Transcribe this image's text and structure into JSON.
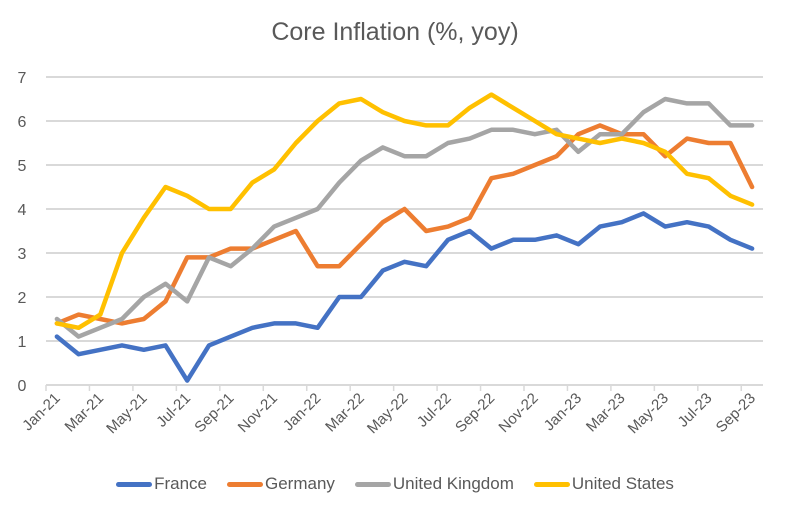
{
  "chart_data": {
    "type": "line",
    "title": "Core Inflation (%, yoy)",
    "xlabel": "",
    "ylabel": "",
    "ylim": [
      0,
      7
    ],
    "yticks": [
      0,
      1,
      2,
      3,
      4,
      5,
      6,
      7
    ],
    "grid": true,
    "legend_position": "bottom",
    "x": [
      "Jan-21",
      "Feb-21",
      "Mar-21",
      "Apr-21",
      "May-21",
      "Jun-21",
      "Jul-21",
      "Aug-21",
      "Sep-21",
      "Oct-21",
      "Nov-21",
      "Dec-21",
      "Jan-22",
      "Feb-22",
      "Mar-22",
      "Apr-22",
      "May-22",
      "Jun-22",
      "Jul-22",
      "Aug-22",
      "Sep-22",
      "Oct-22",
      "Nov-22",
      "Dec-22",
      "Jan-23",
      "Feb-23",
      "Mar-23",
      "Apr-23",
      "May-23",
      "Jun-23",
      "Jul-23",
      "Aug-23",
      "Sep-23"
    ],
    "xtick_labels": [
      "Jan-21",
      "Mar-21",
      "May-21",
      "Jul-21",
      "Sep-21",
      "Nov-21",
      "Jan-22",
      "Mar-22",
      "May-22",
      "Jul-22",
      "Sep-22",
      "Nov-22",
      "Jan-23",
      "Mar-23",
      "May-23",
      "Jul-23",
      "Sep-23"
    ],
    "series": [
      {
        "name": "France",
        "color": "#4472C4",
        "values": [
          1.1,
          0.7,
          0.8,
          0.9,
          0.8,
          0.9,
          0.1,
          0.9,
          1.1,
          1.3,
          1.4,
          1.4,
          1.3,
          2.0,
          2.0,
          2.6,
          2.8,
          2.7,
          3.3,
          3.5,
          3.1,
          3.3,
          3.3,
          3.4,
          3.2,
          3.6,
          3.7,
          3.9,
          3.6,
          3.7,
          3.6,
          3.3,
          3.1
        ]
      },
      {
        "name": "Germany",
        "color": "#ED7D31",
        "values": [
          1.4,
          1.6,
          1.5,
          1.4,
          1.5,
          1.9,
          2.9,
          2.9,
          3.1,
          3.1,
          3.3,
          3.5,
          2.7,
          2.7,
          3.2,
          3.7,
          4.0,
          3.5,
          3.6,
          3.8,
          4.7,
          4.8,
          5.0,
          5.2,
          5.7,
          5.9,
          5.7,
          5.7,
          5.2,
          5.6,
          5.5,
          5.5,
          4.5
        ]
      },
      {
        "name": "United Kingdom",
        "color": "#A5A5A5",
        "values": [
          1.5,
          1.1,
          1.3,
          1.5,
          2.0,
          2.3,
          1.9,
          2.9,
          2.7,
          3.1,
          3.6,
          3.8,
          4.0,
          4.6,
          5.1,
          5.4,
          5.2,
          5.2,
          5.5,
          5.6,
          5.8,
          5.8,
          5.7,
          5.8,
          5.3,
          5.7,
          5.7,
          6.2,
          6.5,
          6.4,
          6.4,
          5.9,
          5.9
        ]
      },
      {
        "name": "United States",
        "color": "#FFC000",
        "values": [
          1.4,
          1.3,
          1.6,
          3.0,
          3.8,
          4.5,
          4.3,
          4.0,
          4.0,
          4.6,
          4.9,
          5.5,
          6.0,
          6.4,
          6.5,
          6.2,
          6.0,
          5.9,
          5.9,
          6.3,
          6.6,
          6.3,
          6.0,
          5.7,
          5.6,
          5.5,
          5.6,
          5.5,
          5.3,
          4.8,
          4.7,
          4.3,
          4.1
        ]
      }
    ]
  }
}
